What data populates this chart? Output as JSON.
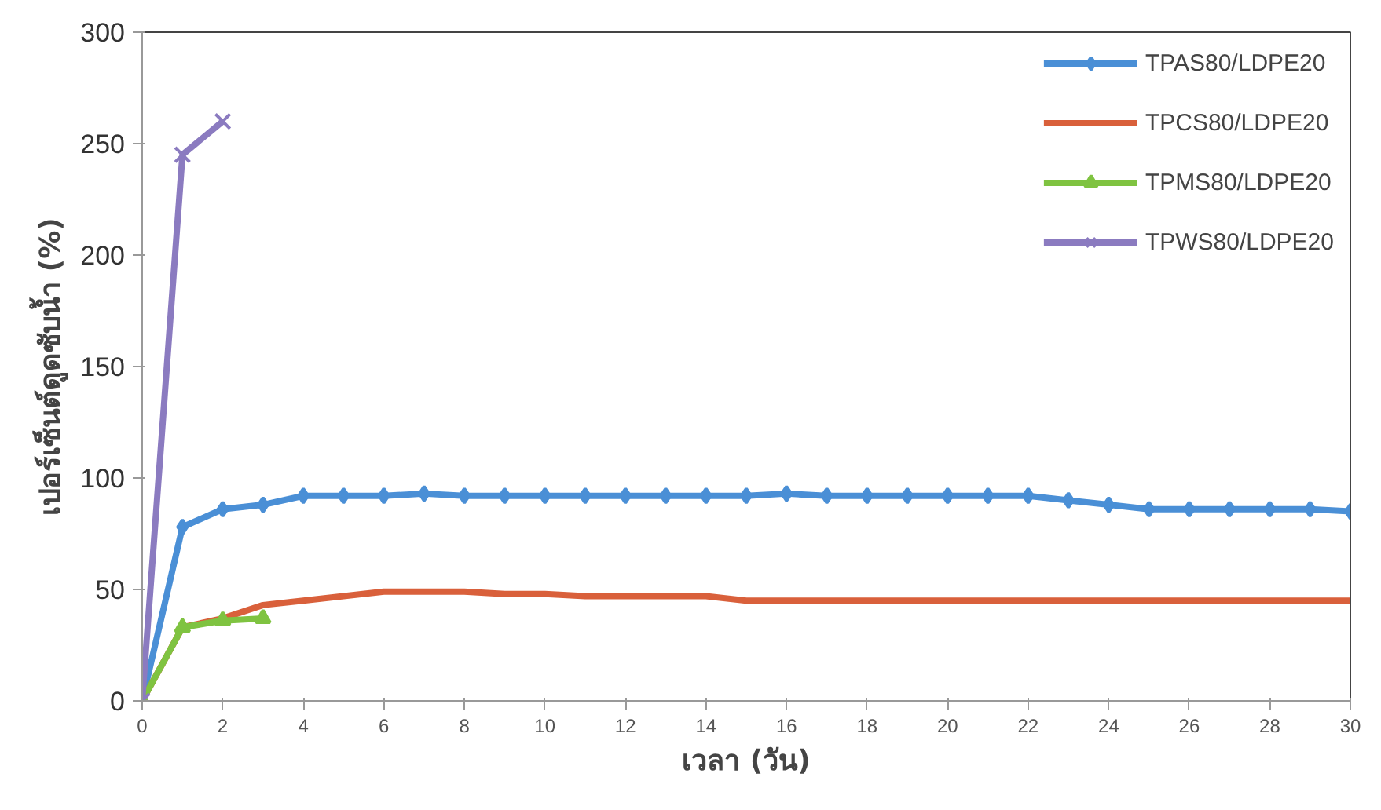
{
  "chart_data": {
    "type": "line",
    "xlabel": "เวลา (วัน)",
    "ylabel": "เปอร์เซ็นต์ดูดซับน้ำ (%)",
    "xlim": [
      0,
      30
    ],
    "xticks": [
      0,
      2,
      4,
      6,
      8,
      10,
      12,
      14,
      16,
      18,
      20,
      22,
      24,
      26,
      28,
      30
    ],
    "ylim": [
      0,
      300
    ],
    "yticks": [
      0,
      50,
      100,
      150,
      200,
      250,
      300
    ],
    "grid": false,
    "legend": "top right",
    "series": [
      {
        "name": "TPAS80/LDPE20",
        "color": "#4a8fd6",
        "marker": "diamond",
        "x": [
          0,
          1,
          2,
          3,
          4,
          5,
          6,
          7,
          8,
          9,
          10,
          11,
          12,
          13,
          14,
          15,
          16,
          17,
          18,
          19,
          20,
          21,
          22,
          23,
          24,
          25,
          26,
          27,
          28,
          29,
          30
        ],
        "values": [
          0,
          78,
          86,
          88,
          92,
          92,
          92,
          93,
          92,
          92,
          92,
          92,
          92,
          92,
          92,
          92,
          93,
          92,
          92,
          92,
          92,
          92,
          92,
          90,
          88,
          86,
          86,
          86,
          86,
          86,
          85
        ]
      },
      {
        "name": "TPCS80/LDPE20",
        "color": "#d9603b",
        "marker": "none",
        "x": [
          0,
          1,
          2,
          3,
          4,
          5,
          6,
          7,
          8,
          9,
          10,
          11,
          12,
          13,
          14,
          15,
          16,
          17,
          18,
          19,
          20,
          21,
          22,
          23,
          24,
          25,
          26,
          27,
          28,
          29,
          30
        ],
        "values": [
          0,
          33,
          37,
          43,
          45,
          47,
          49,
          49,
          49,
          48,
          48,
          47,
          47,
          47,
          47,
          45,
          45,
          45,
          45,
          45,
          45,
          45,
          45,
          45,
          45,
          45,
          45,
          45,
          45,
          45,
          45
        ]
      },
      {
        "name": "TPMS80/LDPE20",
        "color": "#7fc341",
        "marker": "triangle",
        "x": [
          0,
          1,
          2,
          3
        ],
        "values": [
          0,
          33,
          36,
          37
        ]
      },
      {
        "name": "TPWS80/LDPE20",
        "color": "#8b7bc0",
        "marker": "cross",
        "x": [
          0,
          1,
          2
        ],
        "values": [
          0,
          245,
          260
        ]
      }
    ]
  }
}
